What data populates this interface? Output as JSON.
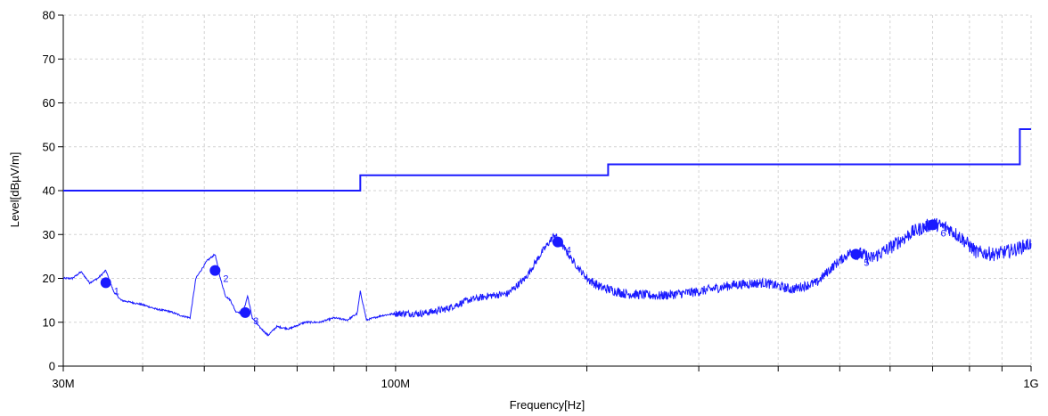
{
  "chart_data": {
    "type": "line",
    "xscale": "log",
    "xlabel": "Frequency[Hz]",
    "ylabel": "Level[dBµV/m]",
    "xlim": [
      30000000,
      1000000000
    ],
    "ylim": [
      0,
      80
    ],
    "yticks": [
      0,
      10,
      20,
      30,
      40,
      50,
      60,
      70,
      80
    ],
    "x_minor_ticks": [
      30000000,
      40000000,
      50000000,
      60000000,
      70000000,
      80000000,
      90000000,
      100000000,
      200000000,
      300000000,
      400000000,
      500000000,
      600000000,
      700000000,
      800000000,
      900000000,
      1000000000
    ],
    "x_tick_labels": [
      {
        "x": 30000000,
        "label": "30M"
      },
      {
        "x": 100000000,
        "label": "100M"
      },
      {
        "x": 1000000000,
        "label": "1G"
      }
    ],
    "grid": true,
    "colors": {
      "series": "#1a1aff",
      "grid": "#d3d3d3",
      "axis": "#000000"
    },
    "limit_line": [
      [
        30000000,
        40
      ],
      [
        88000000,
        40
      ],
      [
        88000000,
        43.5
      ],
      [
        216000000,
        43.5
      ],
      [
        216000000,
        46
      ],
      [
        960000000,
        46
      ],
      [
        960000000,
        54
      ],
      [
        1000000000,
        54
      ]
    ],
    "measurement": [
      [
        30000000,
        20
      ],
      [
        31000000,
        20
      ],
      [
        32000000,
        21.5
      ],
      [
        33000000,
        19
      ],
      [
        34000000,
        20
      ],
      [
        35000000,
        21.8
      ],
      [
        36000000,
        17
      ],
      [
        37000000,
        15
      ],
      [
        38500000,
        14.5
      ],
      [
        40000000,
        14
      ],
      [
        42000000,
        13
      ],
      [
        44000000,
        12.5
      ],
      [
        46000000,
        11.5
      ],
      [
        47500000,
        11
      ],
      [
        48500000,
        20
      ],
      [
        50500000,
        24
      ],
      [
        52000000,
        25.5
      ],
      [
        53000000,
        20
      ],
      [
        54000000,
        16
      ],
      [
        55000000,
        15
      ],
      [
        56000000,
        12.5
      ],
      [
        57500000,
        12
      ],
      [
        58500000,
        16
      ],
      [
        59500000,
        11
      ],
      [
        61000000,
        9
      ],
      [
        63000000,
        7
      ],
      [
        65000000,
        9
      ],
      [
        68000000,
        8.5
      ],
      [
        72000000,
        10
      ],
      [
        76000000,
        10
      ],
      [
        80000000,
        11
      ],
      [
        84000000,
        10.5
      ],
      [
        87000000,
        12
      ],
      [
        88000000,
        17
      ],
      [
        90000000,
        10.5
      ],
      [
        95000000,
        11.5
      ],
      [
        100000000,
        12
      ],
      [
        110000000,
        12
      ],
      [
        120000000,
        13
      ],
      [
        130000000,
        15
      ],
      [
        140000000,
        16
      ],
      [
        150000000,
        16.5
      ],
      [
        160000000,
        20
      ],
      [
        170000000,
        26
      ],
      [
        178000000,
        30
      ],
      [
        182000000,
        28
      ],
      [
        190000000,
        24
      ],
      [
        200000000,
        20
      ],
      [
        210000000,
        18
      ],
      [
        230000000,
        16.5
      ],
      [
        260000000,
        16
      ],
      [
        300000000,
        17
      ],
      [
        340000000,
        18.5
      ],
      [
        380000000,
        19
      ],
      [
        420000000,
        17.5
      ],
      [
        460000000,
        19
      ],
      [
        490000000,
        23
      ],
      [
        520000000,
        26
      ],
      [
        540000000,
        25.5
      ],
      [
        560000000,
        24.5
      ],
      [
        600000000,
        27
      ],
      [
        650000000,
        30.5
      ],
      [
        700000000,
        32.5
      ],
      [
        740000000,
        31.5
      ],
      [
        780000000,
        29
      ],
      [
        820000000,
        26
      ],
      [
        880000000,
        25.5
      ],
      [
        940000000,
        26.5
      ],
      [
        1000000000,
        28
      ]
    ],
    "markers": [
      {
        "label": "1",
        "x": 35000000,
        "y": 19
      },
      {
        "label": "2",
        "x": 52000000,
        "y": 21.8
      },
      {
        "label": "3",
        "x": 58000000,
        "y": 12.2
      },
      {
        "label": "4",
        "x": 180000000,
        "y": 28.3
      },
      {
        "label": "5",
        "x": 530000000,
        "y": 25.5
      },
      {
        "label": "6",
        "x": 700000000,
        "y": 32.2
      }
    ]
  }
}
